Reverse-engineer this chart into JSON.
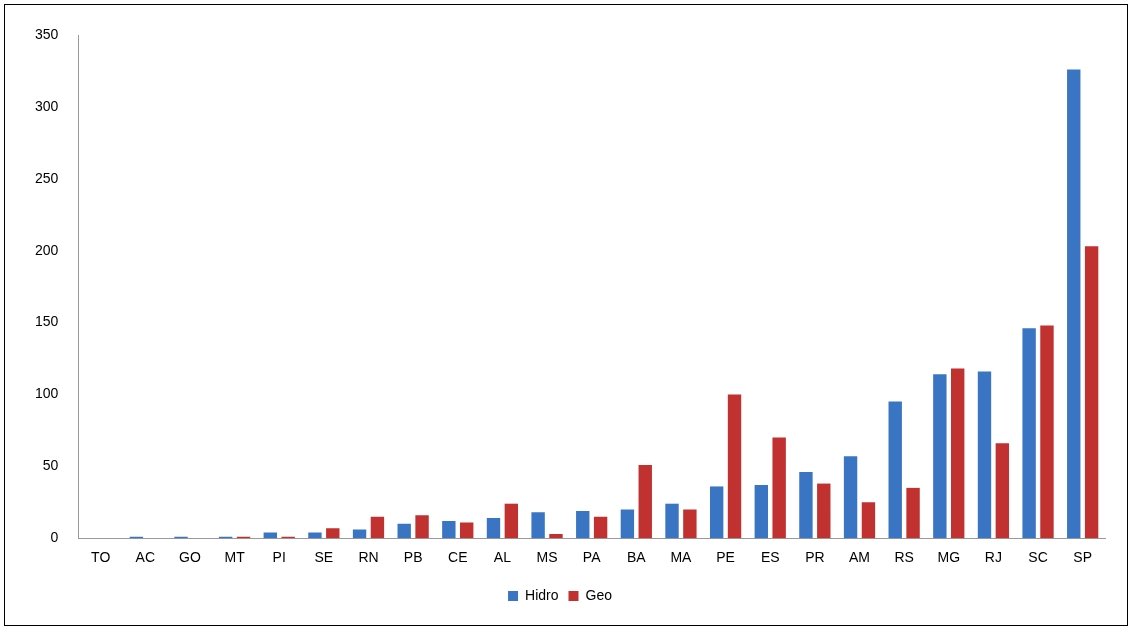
{
  "chart_data": {
    "type": "bar",
    "categories": [
      "TO",
      "AC",
      "GO",
      "MT",
      "PI",
      "SE",
      "RN",
      "PB",
      "CE",
      "AL",
      "MS",
      "PA",
      "BA",
      "MA",
      "PE",
      "ES",
      "PR",
      "AM",
      "RS",
      "MG",
      "RJ",
      "SC",
      "SP"
    ],
    "series": [
      {
        "name": "Hidro",
        "color": "#3a75c4",
        "values": [
          0,
          1,
          1,
          1,
          4,
          4,
          6,
          10,
          12,
          14,
          18,
          19,
          20,
          24,
          36,
          37,
          46,
          57,
          95,
          114,
          116,
          146,
          326
        ]
      },
      {
        "name": "Geo",
        "color": "#c0312f",
        "values": [
          0,
          0,
          0,
          1,
          1,
          7,
          15,
          16,
          11,
          24,
          3,
          15,
          51,
          20,
          100,
          70,
          38,
          25,
          35,
          118,
          66,
          148,
          203
        ]
      }
    ],
    "ylim": [
      0,
      350
    ],
    "yticks": [
      0,
      50,
      100,
      150,
      200,
      250,
      300,
      350
    ],
    "grid": false,
    "legend": "bottom"
  }
}
